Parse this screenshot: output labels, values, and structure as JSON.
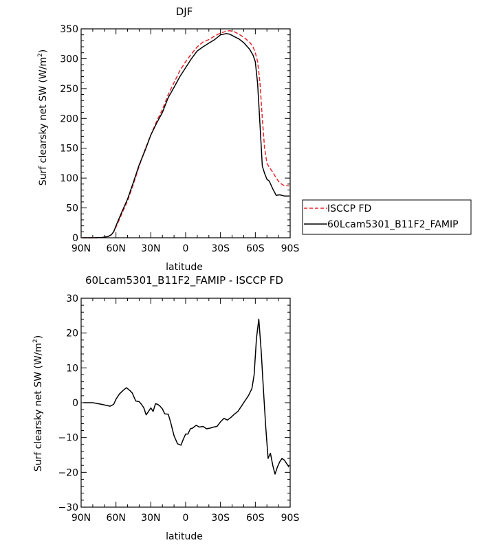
{
  "chart_data": [
    {
      "type": "line",
      "title": "DJF",
      "xlabel": "latitude",
      "ylabel_main": "Surf clearsky net SW (W/m",
      "ylabel_sup": "2",
      "ylabel_close": ")",
      "xlim": [
        90,
        -90
      ],
      "ylim": [
        0,
        350
      ],
      "x_ticks": [
        {
          "value": 90,
          "label": "90N"
        },
        {
          "value": 60,
          "label": "60N"
        },
        {
          "value": 30,
          "label": "30N"
        },
        {
          "value": 0,
          "label": "0"
        },
        {
          "value": -30,
          "label": "30S"
        },
        {
          "value": -60,
          "label": "60S"
        },
        {
          "value": -90,
          "label": "90S"
        }
      ],
      "y_ticks": [
        0,
        50,
        100,
        150,
        200,
        250,
        300,
        350
      ],
      "legend": {
        "position": "right",
        "boxed": true
      },
      "series": [
        {
          "name": "ISCCP FD",
          "color": "#e8262c",
          "dash": "dashed",
          "x": [
            89,
            80,
            72,
            67,
            64,
            62,
            60,
            55,
            50,
            45,
            40,
            35,
            30,
            25,
            20,
            15,
            10,
            5,
            0,
            -5,
            -10,
            -15,
            -20,
            -25,
            -30,
            -35,
            -38,
            -42,
            -46,
            -50,
            -55,
            -58,
            -60,
            -62,
            -64,
            -66,
            -68,
            -70,
            -72,
            -75,
            -78,
            -81,
            -85,
            -89
          ],
          "y": [
            0,
            0,
            0.5,
            2,
            5,
            10,
            18,
            40,
            62,
            90,
            120,
            148,
            172,
            195,
            215,
            240,
            260,
            280,
            295,
            308,
            320,
            328,
            332,
            338,
            343,
            346,
            347,
            345,
            341,
            336,
            328,
            320,
            310,
            295,
            260,
            200,
            150,
            125,
            118,
            110,
            100,
            92,
            87,
            87
          ]
        },
        {
          "name": "60Lcam5301_B11F2_FAMIP",
          "color": "#000000",
          "dash": "solid",
          "x": [
            89,
            80,
            72,
            67,
            64,
            62,
            60,
            55,
            50,
            45,
            40,
            35,
            30,
            25,
            20,
            15,
            10,
            5,
            0,
            -5,
            -10,
            -15,
            -20,
            -25,
            -30,
            -35,
            -38,
            -42,
            -46,
            -50,
            -55,
            -58,
            -60,
            -62,
            -64,
            -66,
            -68,
            -70,
            -72,
            -75,
            -78,
            -81,
            -85,
            -89
          ],
          "y": [
            0,
            0,
            0.5,
            2,
            5,
            10,
            20,
            43,
            65,
            93,
            122,
            146,
            172,
            192,
            210,
            235,
            252,
            270,
            285,
            300,
            313,
            320,
            326,
            332,
            340,
            342,
            341,
            337,
            333,
            327,
            316,
            306,
            295,
            258,
            190,
            120,
            108,
            98,
            95,
            82,
            71,
            72,
            70,
            70
          ]
        }
      ]
    },
    {
      "type": "line",
      "title": "60Lcam5301_B11F2_FAMIP - ISCCP FD",
      "xlabel": "latitude",
      "ylabel_main": "Surf clearsky net SW (W/m",
      "ylabel_sup": "2",
      "ylabel_close": ")",
      "xlim": [
        90,
        -90
      ],
      "ylim": [
        -30,
        30
      ],
      "x_ticks": [
        {
          "value": 90,
          "label": "90N"
        },
        {
          "value": 60,
          "label": "60N"
        },
        {
          "value": 30,
          "label": "30N"
        },
        {
          "value": 0,
          "label": "0"
        },
        {
          "value": -30,
          "label": "30S"
        },
        {
          "value": -60,
          "label": "60S"
        },
        {
          "value": -90,
          "label": "90S"
        }
      ],
      "y_ticks": [
        -30,
        -20,
        -10,
        0,
        10,
        20,
        30
      ],
      "y_tick_labels": [
        "−30",
        "−20",
        "−10",
        "0",
        "10",
        "20",
        "30"
      ],
      "series": [
        {
          "color": "#000000",
          "dash": "solid",
          "x": [
            88,
            80,
            72,
            65,
            62,
            60,
            57,
            54,
            51,
            48,
            46,
            43,
            40,
            38,
            36,
            34,
            32,
            30,
            28,
            26,
            24,
            22,
            20,
            18,
            15,
            13,
            10,
            7,
            4,
            2,
            0,
            -2,
            -4,
            -6,
            -9,
            -12,
            -15,
            -18,
            -21,
            -24,
            -27,
            -30,
            -33,
            -36,
            -39,
            -42,
            -45,
            -48,
            -51,
            -54,
            -57,
            -59,
            -61,
            -63,
            -65,
            -67,
            -69,
            -71,
            -73,
            -75,
            -77,
            -79,
            -81,
            -83,
            -85,
            -87,
            -89
          ],
          "y": [
            0,
            0,
            -0.5,
            -1,
            -0.5,
            1,
            2.5,
            3.5,
            4.3,
            3.5,
            2.8,
            0.5,
            0.3,
            -0.5,
            -1.5,
            -3.5,
            -2.5,
            -1.5,
            -2.5,
            -0.3,
            -0.5,
            -1,
            -1.8,
            -3.2,
            -3.3,
            -5.5,
            -9.5,
            -11.8,
            -12.2,
            -10.5,
            -9,
            -9,
            -7.5,
            -7.3,
            -6.5,
            -7,
            -6.8,
            -7.5,
            -7.3,
            -7,
            -6.8,
            -5.5,
            -4.5,
            -5,
            -4.2,
            -3.3,
            -2.5,
            -1,
            0.5,
            2,
            4,
            8,
            18.5,
            24,
            15,
            3.5,
            -7,
            -16,
            -14.5,
            -18,
            -20.5,
            -18.5,
            -17,
            -16,
            -16.5,
            -17.5,
            -18.5
          ]
        }
      ]
    }
  ]
}
